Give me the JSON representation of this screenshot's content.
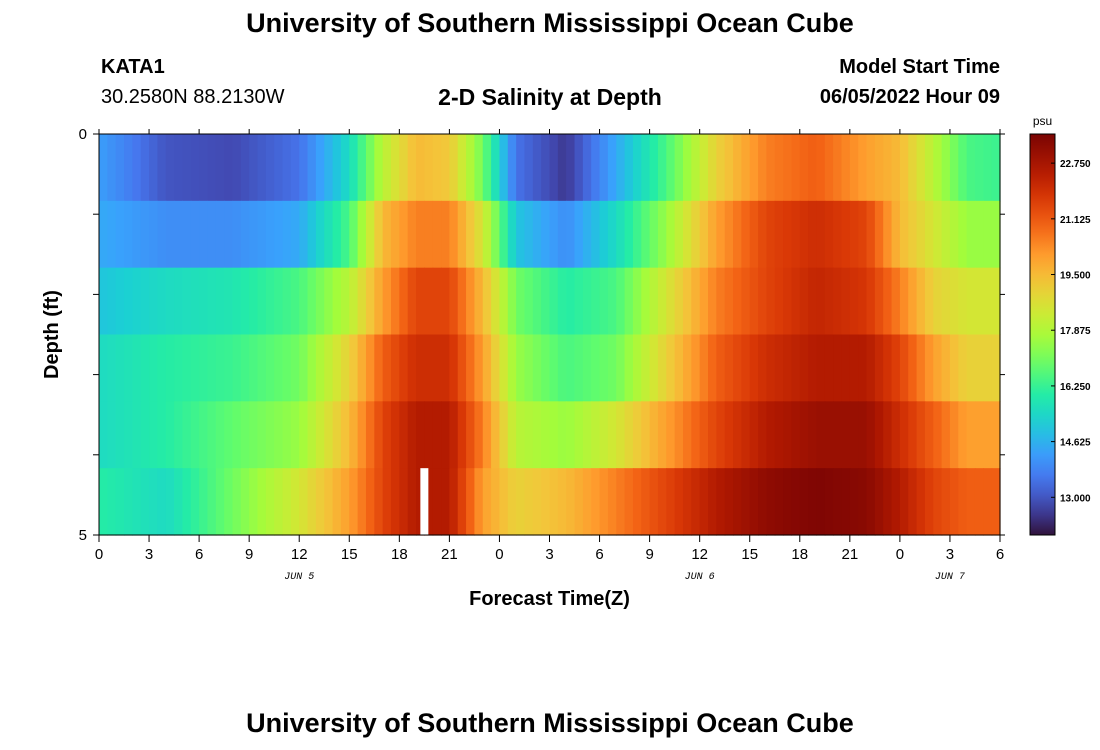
{
  "header": {
    "title": "University of Southern Mississippi Ocean Cube",
    "station": "KATA1",
    "coordinates": "30.2580N  88.2130W",
    "subtitle": "2-D Salinity at Depth",
    "model_start_label": "Model Start Time",
    "model_start_value": "06/05/2022 Hour 09"
  },
  "footer": {
    "title": "University of Southern Mississippi Ocean Cube"
  },
  "chart_data": {
    "type": "heatmap",
    "title": "2-D Salinity at Depth",
    "xlabel": "Forecast Time(Z)",
    "ylabel": "Depth (ft)",
    "x_tick_labels": [
      "0",
      "3",
      "6",
      "9",
      "12",
      "15",
      "18",
      "21",
      "0",
      "3",
      "6",
      "9",
      "12",
      "15",
      "18",
      "21",
      "0",
      "3",
      "6"
    ],
    "x_range_hours": [
      0,
      54
    ],
    "y_tick_labels": [
      "0",
      "5"
    ],
    "y_range": [
      0,
      5
    ],
    "date_labels": [
      {
        "text": "JUN 5",
        "hour": 12
      },
      {
        "text": "JUN 6",
        "hour": 36
      },
      {
        "text": "JUN 7",
        "hour": 51
      }
    ],
    "colorbar": {
      "unit": "psu",
      "min": 11.9,
      "max": 23.6,
      "tick_labels": [
        "13.000",
        "14.625",
        "16.250",
        "17.875",
        "19.500",
        "21.125",
        "22.750"
      ],
      "tick_values": [
        13.0,
        14.625,
        16.25,
        17.875,
        19.5,
        21.125,
        22.75
      ]
    },
    "gap_hour": 19.5,
    "depth_layers": [
      {
        "layer": 1,
        "hours": [
          0,
          4,
          8,
          12,
          15,
          17,
          19,
          21,
          23,
          25,
          28,
          31,
          34,
          37,
          40,
          43,
          46,
          48,
          50,
          52,
          54
        ],
        "salinity": [
          14.3,
          13.0,
          12.8,
          13.5,
          15.5,
          18.0,
          19.5,
          19.2,
          17.0,
          13.5,
          12.5,
          14.5,
          16.5,
          19.0,
          20.5,
          21.0,
          20.0,
          19.5,
          18.0,
          16.5,
          16.3
        ]
      },
      {
        "layer": 2,
        "hours": [
          0,
          4,
          8,
          12,
          15,
          17,
          19,
          21,
          23,
          25,
          28,
          31,
          34,
          37,
          40,
          43,
          46,
          48,
          50,
          52,
          54
        ],
        "salinity": [
          14.5,
          14.0,
          14.0,
          14.5,
          16.5,
          19.5,
          20.5,
          20.5,
          18.5,
          15.0,
          14.0,
          15.5,
          17.5,
          20.0,
          21.5,
          22.0,
          21.5,
          19.5,
          18.5,
          17.5,
          17.5
        ]
      },
      {
        "layer": 3,
        "hours": [
          0,
          4,
          8,
          12,
          15,
          17,
          19,
          21,
          23,
          25,
          28,
          31,
          34,
          37,
          40,
          43,
          46,
          48,
          50,
          52,
          54
        ],
        "salinity": [
          15.0,
          15.5,
          15.8,
          16.5,
          18.0,
          20.0,
          21.5,
          21.5,
          19.5,
          17.0,
          16.0,
          16.5,
          18.5,
          20.5,
          21.5,
          22.2,
          21.8,
          20.5,
          19.0,
          18.5,
          18.5
        ]
      },
      {
        "layer": 4,
        "hours": [
          0,
          4,
          8,
          12,
          15,
          17,
          19,
          21,
          23,
          25,
          28,
          31,
          34,
          37,
          40,
          43,
          46,
          48,
          50,
          52,
          54
        ],
        "salinity": [
          15.5,
          16.0,
          16.3,
          17.0,
          19.0,
          21.0,
          22.0,
          22.0,
          20.0,
          17.5,
          16.5,
          17.0,
          19.0,
          21.0,
          22.0,
          22.5,
          22.5,
          21.5,
          20.0,
          19.0,
          19.0
        ]
      },
      {
        "layer": 5,
        "hours": [
          0,
          4,
          8,
          12,
          15,
          17,
          19,
          21,
          23,
          25,
          28,
          31,
          34,
          37,
          40,
          43,
          46,
          48,
          50,
          52,
          54
        ],
        "salinity": [
          15.5,
          16.0,
          16.8,
          17.5,
          19.5,
          21.5,
          22.5,
          22.5,
          20.5,
          18.0,
          17.5,
          18.5,
          20.0,
          21.5,
          22.5,
          23.0,
          23.0,
          22.0,
          21.0,
          20.0,
          20.0
        ]
      },
      {
        "layer": 6,
        "hours": [
          0,
          4,
          8,
          12,
          15,
          17,
          19,
          21,
          23,
          25,
          28,
          31,
          34,
          37,
          40,
          43,
          46,
          48,
          50,
          52,
          54
        ],
        "salinity": [
          16.0,
          15.5,
          17.0,
          18.5,
          20.0,
          21.5,
          22.5,
          22.5,
          20.0,
          19.0,
          19.5,
          20.5,
          21.5,
          22.5,
          23.2,
          23.5,
          23.3,
          22.5,
          21.5,
          21.0,
          21.0
        ]
      }
    ]
  }
}
